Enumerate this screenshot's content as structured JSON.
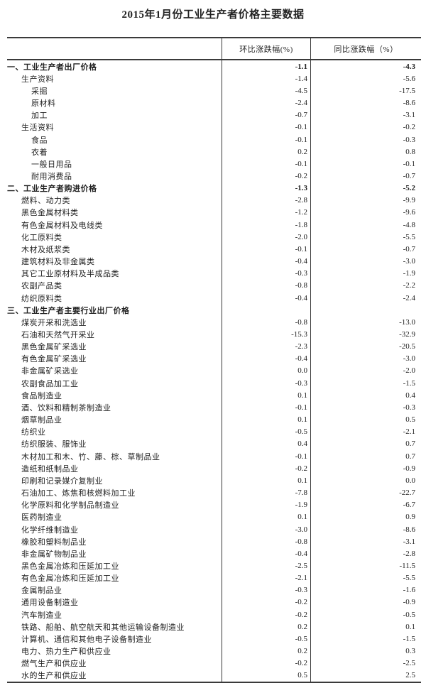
{
  "title": "2015年1月份工业生产者价格主要数据",
  "table": {
    "columns": [
      "环比涨跌幅(%)",
      "同比涨跌幅（%）"
    ],
    "rows": [
      {
        "label": "一、工业生产者出厂价格",
        "indent": 0,
        "bold": true,
        "mom": "-1.1",
        "yoy": "-4.3"
      },
      {
        "label": "生产资料",
        "indent": 1,
        "bold": false,
        "mom": "-1.4",
        "yoy": "-5.6"
      },
      {
        "label": "采掘",
        "indent": 2,
        "bold": false,
        "mom": "-4.5",
        "yoy": "-17.5"
      },
      {
        "label": "原材料",
        "indent": 2,
        "bold": false,
        "mom": "-2.4",
        "yoy": "-8.6"
      },
      {
        "label": "加工",
        "indent": 2,
        "bold": false,
        "mom": "-0.7",
        "yoy": "-3.1"
      },
      {
        "label": "生活资料",
        "indent": 1,
        "bold": false,
        "mom": "-0.1",
        "yoy": "-0.2"
      },
      {
        "label": "食品",
        "indent": 2,
        "bold": false,
        "mom": "-0.1",
        "yoy": "-0.3"
      },
      {
        "label": "衣着",
        "indent": 2,
        "bold": false,
        "mom": "0.2",
        "yoy": "0.8"
      },
      {
        "label": "一般日用品",
        "indent": 2,
        "bold": false,
        "mom": "-0.1",
        "yoy": "-0.1"
      },
      {
        "label": "耐用消费品",
        "indent": 2,
        "bold": false,
        "mom": "-0.2",
        "yoy": "-0.7"
      },
      {
        "label": "二、工业生产者购进价格",
        "indent": 0,
        "bold": true,
        "mom": "-1.3",
        "yoy": "-5.2"
      },
      {
        "label": "燃料、动力类",
        "indent": 1,
        "bold": false,
        "mom": "-2.8",
        "yoy": "-9.9"
      },
      {
        "label": "黑色金属材料类",
        "indent": 1,
        "bold": false,
        "mom": "-1.2",
        "yoy": "-9.6"
      },
      {
        "label": "有色金属材料及电线类",
        "indent": 1,
        "bold": false,
        "mom": "-1.8",
        "yoy": "-4.8"
      },
      {
        "label": "化工原料类",
        "indent": 1,
        "bold": false,
        "mom": "-2.0",
        "yoy": "-5.5"
      },
      {
        "label": "木材及纸浆类",
        "indent": 1,
        "bold": false,
        "mom": "-0.1",
        "yoy": "-0.7"
      },
      {
        "label": "建筑材料及非金属类",
        "indent": 1,
        "bold": false,
        "mom": "-0.4",
        "yoy": "-3.0"
      },
      {
        "label": "其它工业原材料及半成品类",
        "indent": 1,
        "bold": false,
        "mom": "-0.3",
        "yoy": "-1.9"
      },
      {
        "label": "农副产品类",
        "indent": 1,
        "bold": false,
        "mom": "-0.8",
        "yoy": "-2.2"
      },
      {
        "label": "纺织原料类",
        "indent": 1,
        "bold": false,
        "mom": "-0.4",
        "yoy": "-2.4"
      },
      {
        "label": "三、工业生产者主要行业出厂价格",
        "indent": 0,
        "bold": true,
        "mom": "",
        "yoy": ""
      },
      {
        "label": "煤炭开采和洗选业",
        "indent": 1,
        "bold": false,
        "mom": "-0.8",
        "yoy": "-13.0"
      },
      {
        "label": "石油和天然气开采业",
        "indent": 1,
        "bold": false,
        "mom": "-15.3",
        "yoy": "-32.9"
      },
      {
        "label": "黑色金属矿采选业",
        "indent": 1,
        "bold": false,
        "mom": "-2.3",
        "yoy": "-20.5"
      },
      {
        "label": "有色金属矿采选业",
        "indent": 1,
        "bold": false,
        "mom": "-0.4",
        "yoy": "-3.0"
      },
      {
        "label": "非金属矿采选业",
        "indent": 1,
        "bold": false,
        "mom": "0.0",
        "yoy": "-2.0"
      },
      {
        "label": "农副食品加工业",
        "indent": 1,
        "bold": false,
        "mom": "-0.3",
        "yoy": "-1.5"
      },
      {
        "label": "食品制造业",
        "indent": 1,
        "bold": false,
        "mom": "0.1",
        "yoy": "0.4"
      },
      {
        "label": "酒、饮料和精制茶制造业",
        "indent": 1,
        "bold": false,
        "mom": "-0.1",
        "yoy": "-0.3"
      },
      {
        "label": "烟草制品业",
        "indent": 1,
        "bold": false,
        "mom": "0.1",
        "yoy": "0.5"
      },
      {
        "label": "纺织业",
        "indent": 1,
        "bold": false,
        "mom": "-0.5",
        "yoy": "-2.1"
      },
      {
        "label": "纺织服装、服饰业",
        "indent": 1,
        "bold": false,
        "mom": "0.4",
        "yoy": "0.7"
      },
      {
        "label": "木材加工和木、竹、藤、棕、草制品业",
        "indent": 1,
        "bold": false,
        "mom": "-0.1",
        "yoy": "0.7"
      },
      {
        "label": "造纸和纸制品业",
        "indent": 1,
        "bold": false,
        "mom": "-0.2",
        "yoy": "-0.9"
      },
      {
        "label": "印刷和记录媒介复制业",
        "indent": 1,
        "bold": false,
        "mom": "0.1",
        "yoy": "0.0"
      },
      {
        "label": "石油加工、炼焦和核燃料加工业",
        "indent": 1,
        "bold": false,
        "mom": "-7.8",
        "yoy": "-22.7"
      },
      {
        "label": "化学原料和化学制品制造业",
        "indent": 1,
        "bold": false,
        "mom": "-1.9",
        "yoy": "-6.7"
      },
      {
        "label": "医药制造业",
        "indent": 1,
        "bold": false,
        "mom": "0.1",
        "yoy": "0.9"
      },
      {
        "label": "化学纤维制造业",
        "indent": 1,
        "bold": false,
        "mom": "-3.0",
        "yoy": "-8.6"
      },
      {
        "label": "橡胶和塑料制品业",
        "indent": 1,
        "bold": false,
        "mom": "-0.8",
        "yoy": "-3.1"
      },
      {
        "label": "非金属矿物制品业",
        "indent": 1,
        "bold": false,
        "mom": "-0.4",
        "yoy": "-2.8"
      },
      {
        "label": "黑色金属冶炼和压延加工业",
        "indent": 1,
        "bold": false,
        "mom": "-2.5",
        "yoy": "-11.5"
      },
      {
        "label": "有色金属冶炼和压延加工业",
        "indent": 1,
        "bold": false,
        "mom": "-2.1",
        "yoy": "-5.5"
      },
      {
        "label": "金属制品业",
        "indent": 1,
        "bold": false,
        "mom": "-0.3",
        "yoy": "-1.6"
      },
      {
        "label": "通用设备制造业",
        "indent": 1,
        "bold": false,
        "mom": "-0.2",
        "yoy": "-0.9"
      },
      {
        "label": "汽车制造业",
        "indent": 1,
        "bold": false,
        "mom": "-0.2",
        "yoy": "-0.5"
      },
      {
        "label": "铁路、船舶、航空航天和其他运输设备制造业",
        "indent": 1,
        "bold": false,
        "mom": "0.2",
        "yoy": "0.1"
      },
      {
        "label": "计算机、通信和其他电子设备制造业",
        "indent": 1,
        "bold": false,
        "mom": "-0.5",
        "yoy": "-1.5"
      },
      {
        "label": "电力、热力生产和供应业",
        "indent": 1,
        "bold": false,
        "mom": "0.2",
        "yoy": "0.3"
      },
      {
        "label": "燃气生产和供应业",
        "indent": 1,
        "bold": false,
        "mom": "-0.2",
        "yoy": "-2.5"
      },
      {
        "label": "水的生产和供应业",
        "indent": 1,
        "bold": false,
        "mom": "0.5",
        "yoy": "2.5"
      }
    ]
  }
}
